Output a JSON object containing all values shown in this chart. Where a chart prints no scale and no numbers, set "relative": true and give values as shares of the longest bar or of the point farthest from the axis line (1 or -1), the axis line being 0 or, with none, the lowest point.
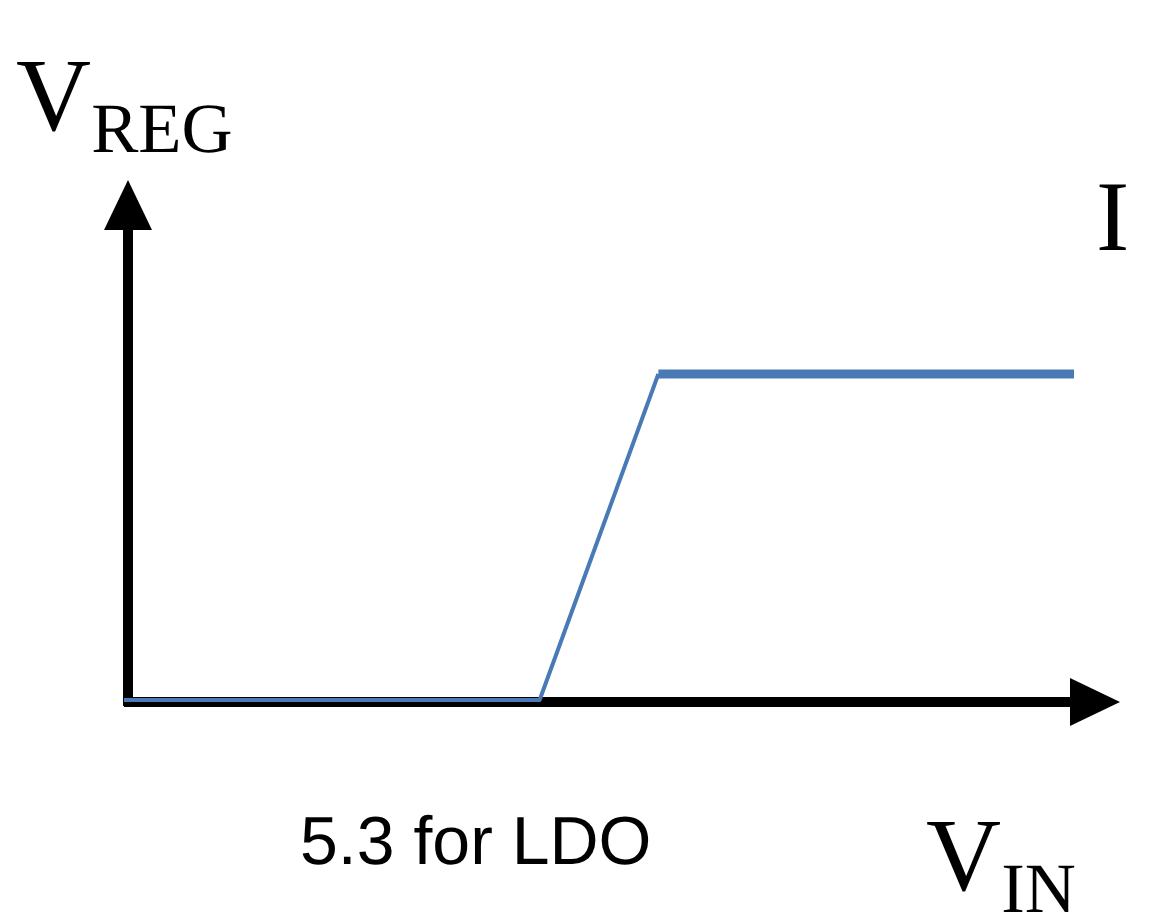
{
  "chart_data": {
    "type": "line",
    "relative": true,
    "ylabel": "V$_{REG}$",
    "xlabel": "V$_{IN}$",
    "categories": [
      null,
      null,
      null,
      null,
      null,
      null,
      null,
      null,
      null,
      null,
      null,
      null,
      null,
      null,
      null,
      null,
      null
    ],
    "series": [
      {
        "color": "#4a7ab5",
        "values": [
          0,
          0,
          0,
          0,
          0,
          0,
          0,
          0,
          0.5,
          1,
          null,
          null,
          null,
          null,
          null,
          null,
          null
        ]
      },
      {
        "color": "#4a7ab5",
        "values": [
          null,
          null,
          null,
          null,
          null,
          null,
          null,
          null,
          null,
          1,
          1,
          1,
          1,
          1,
          1,
          1,
          1
        ]
      }
    ],
    "annotations": [
      "5.3 for LDO",
      "I"
    ]
  }
}
